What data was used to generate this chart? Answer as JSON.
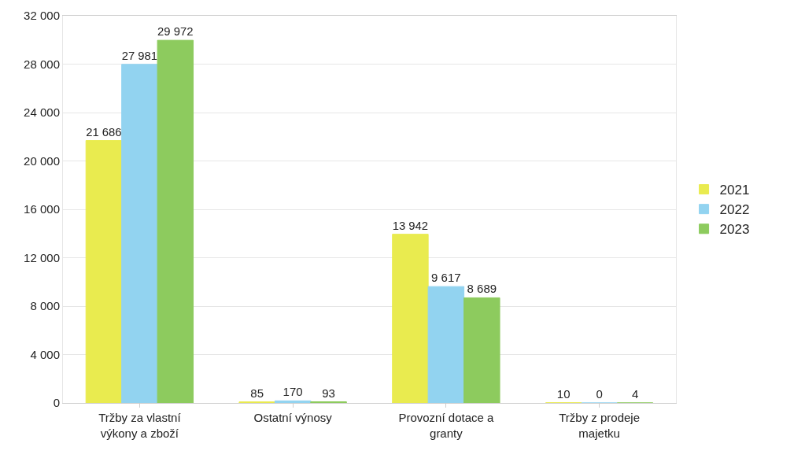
{
  "chart_data": {
    "type": "bar",
    "categories": [
      "Tržby za vlastní výkony a zboží",
      "Ostatní výnosy",
      "Provozní dotace a granty",
      "Tržby z prodeje majetku"
    ],
    "series": [
      {
        "name": "2021",
        "color": "#e9eb4f",
        "values": [
          21686,
          85,
          13942,
          10
        ],
        "value_labels": [
          "21 686",
          "85",
          "13 942",
          "10"
        ]
      },
      {
        "name": "2022",
        "color": "#92d3f0",
        "values": [
          27981,
          170,
          9617,
          0
        ],
        "value_labels": [
          "27 981",
          "170",
          "9 617",
          "0"
        ]
      },
      {
        "name": "2023",
        "color": "#8dcb5e",
        "values": [
          29972,
          93,
          8689,
          4
        ],
        "value_labels": [
          "29 972",
          "93",
          "8 689",
          "4"
        ]
      }
    ],
    "ylim": [
      0,
      32000
    ],
    "yticks": [
      {
        "value": 0,
        "label": "0"
      },
      {
        "value": 4000,
        "label": "4 000"
      },
      {
        "value": 8000,
        "label": "8 000"
      },
      {
        "value": 12000,
        "label": "12 000"
      },
      {
        "value": 16000,
        "label": "16 000"
      },
      {
        "value": 20000,
        "label": "20 000"
      },
      {
        "value": 24000,
        "label": "24 000"
      },
      {
        "value": 28000,
        "label": "28 000"
      },
      {
        "value": 32000,
        "label": "32 000"
      }
    ],
    "grid": "y",
    "legend": "right"
  }
}
